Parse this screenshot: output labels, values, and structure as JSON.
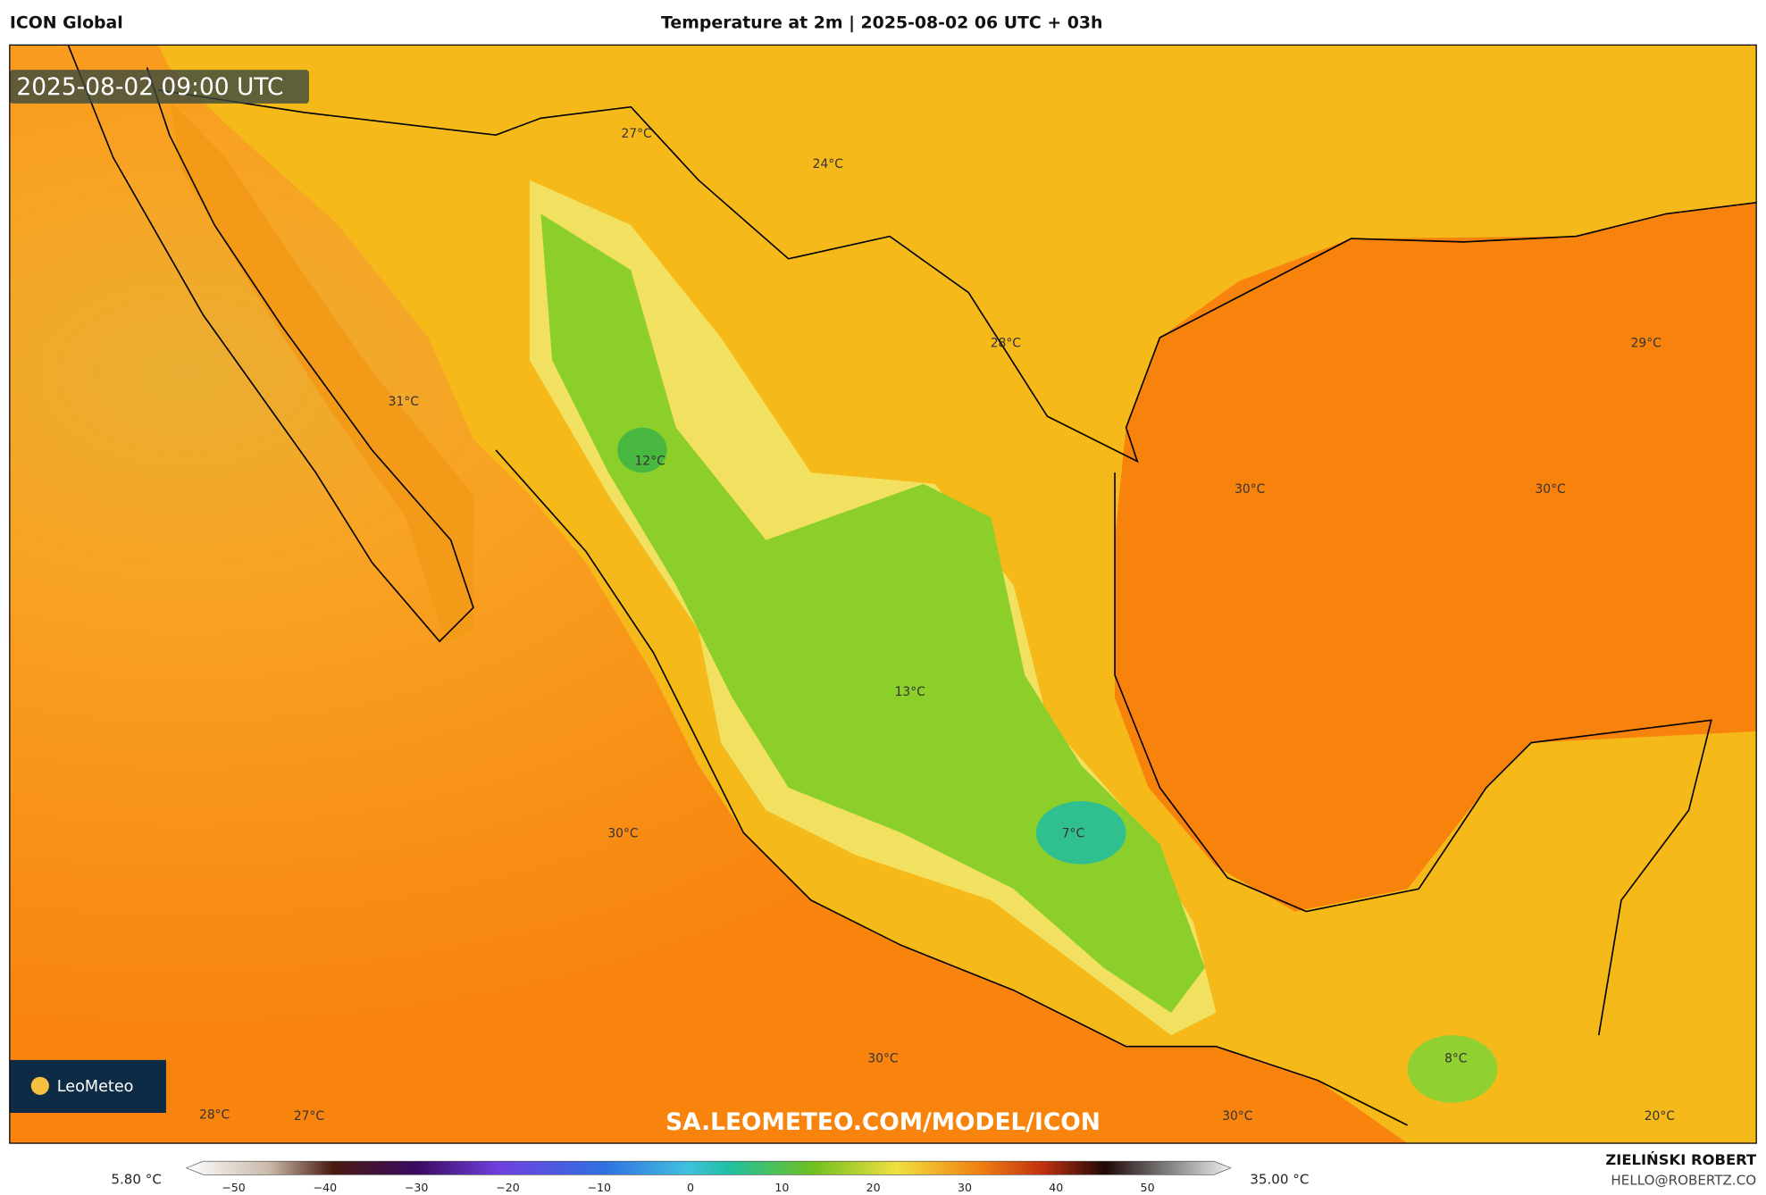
{
  "header": {
    "model": "ICON Global",
    "title": "Temperature at 2m | 2025-08-02 06 UTC + 03h"
  },
  "map": {
    "valid_time": "2025-08-02 09:00 UTC",
    "watermark": "SA.LEOMETEO.COM/MODEL/ICON",
    "logo": "LeoMeteo",
    "labels": [
      "27°C",
      "24°C",
      "28°C",
      "29°C",
      "31°C",
      "12°C",
      "30°C",
      "30°C",
      "13°C",
      "30°C",
      "7°C",
      "30°C",
      "8°C",
      "28°C",
      "27°C",
      "30°C",
      "20°C"
    ]
  },
  "colorbar": {
    "min": "5.80 °C",
    "max": "35.00 °C",
    "ticks": [
      "−50",
      "−40",
      "−30",
      "−20",
      "−10",
      "0",
      "10",
      "20",
      "30",
      "40",
      "50"
    ]
  },
  "credit": {
    "name": "ZIELIŃSKI ROBERT",
    "email": "HELLO@ROBERTZ.CO"
  }
}
